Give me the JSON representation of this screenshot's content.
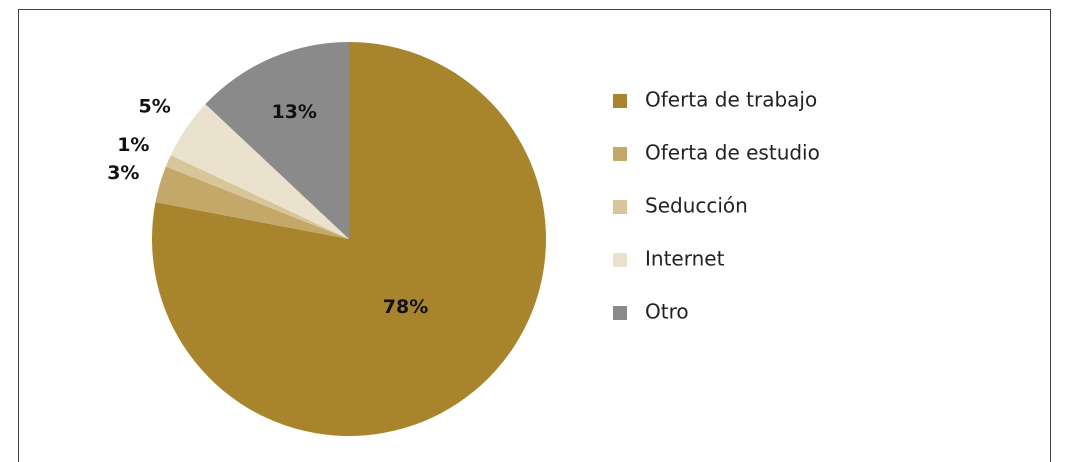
{
  "chart_data": {
    "type": "pie",
    "categories": [
      "Oferta de trabajo",
      "Oferta de estudio",
      "Seducción",
      "Internet",
      "Otro"
    ],
    "values": [
      78,
      3,
      1,
      5,
      13
    ],
    "value_labels": [
      "78%",
      "3%",
      "1%",
      "5%",
      "13%"
    ],
    "colors": [
      "#a8852d",
      "#c4a86a",
      "#d8c59a",
      "#ebe2cd",
      "#8a8a8a"
    ],
    "legend": "right"
  }
}
